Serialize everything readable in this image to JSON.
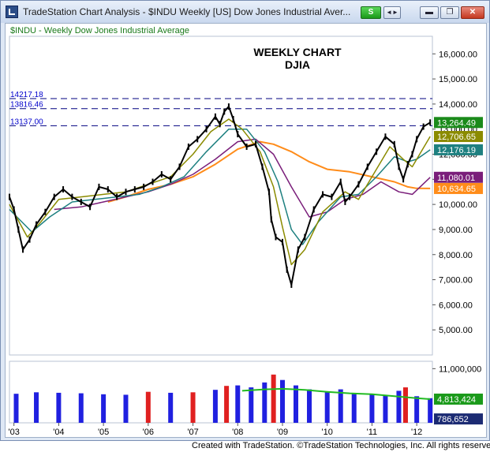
{
  "window": {
    "title": "TradeStation Chart Analysis - $INDU Weekly [US] Dow Jones Industrial Aver...",
    "buttons": {
      "s": "S",
      "arrows": "◄►",
      "minimize": "▬",
      "restore": "❐",
      "close": "✕"
    }
  },
  "footer": "Created with TradeStation. ©TradeStation Technologies, Inc. All rights reserved.",
  "colors": {
    "price": "#000000",
    "sma10": "#8b8b00",
    "sma20": "#1e8080",
    "sma50": "#7a1e7a",
    "sma100": "#ff8c1a",
    "vol_up": "#2020e0",
    "vol_down": "#e02020",
    "vol_avg": "#22bb22",
    "level_line": "#000080",
    "level_text": "#0000cc"
  },
  "chart_data": {
    "type": "line",
    "symbol_label": "$INDU - Weekly  Dow Jones Industrial Average",
    "annotation": [
      "WEEKLY CHART",
      "DJIA"
    ],
    "x_tick_labels": [
      "'03",
      "'04",
      "'05",
      "'06",
      "'07",
      "'08",
      "'09",
      "'10",
      "'11",
      "'12"
    ],
    "x_ticks": [
      2003,
      2004,
      2005,
      2006,
      2007,
      2008,
      2009,
      2010,
      2011,
      2012
    ],
    "x_range": [
      2002.9,
      2012.35
    ],
    "y_ticks": [
      5000,
      6000,
      7000,
      8000,
      9000,
      10000,
      11000,
      12000,
      13000,
      14000,
      15000,
      16000
    ],
    "y_tick_labels": [
      "5,000.00",
      "6,000.00",
      "7,000.00",
      "8,000.00",
      "9,000.00",
      "10,000.00",
      "11,000.00",
      "12,000.00",
      "13,000.00",
      "14,000.00",
      "15,000.00",
      "16,000.00"
    ],
    "ylim": [
      4000,
      16700
    ],
    "horizontal_levels": [
      {
        "label": "14217.18",
        "value": 14217.18
      },
      {
        "label": "13816.46",
        "value": 13816.46
      },
      {
        "label": "13137.00",
        "value": 13137.0
      }
    ],
    "series": [
      {
        "name": "Price",
        "color_key": "price",
        "x": [
          2002.9,
          2003.0,
          2003.1,
          2003.2,
          2003.35,
          2003.5,
          2003.7,
          2003.9,
          2004.1,
          2004.3,
          2004.5,
          2004.7,
          2004.9,
          2005.1,
          2005.3,
          2005.5,
          2005.7,
          2005.9,
          2006.1,
          2006.3,
          2006.5,
          2006.7,
          2006.9,
          2007.1,
          2007.3,
          2007.5,
          2007.6,
          2007.7,
          2007.8,
          2007.9,
          2008.0,
          2008.2,
          2008.4,
          2008.55,
          2008.7,
          2008.75,
          2008.85,
          2009.0,
          2009.1,
          2009.2,
          2009.35,
          2009.5,
          2009.7,
          2009.9,
          2010.1,
          2010.3,
          2010.4,
          2010.5,
          2010.7,
          2010.9,
          2011.1,
          2011.3,
          2011.5,
          2011.6,
          2011.7,
          2011.8,
          2011.9,
          2012.0,
          2012.15,
          2012.3
        ],
        "y": [
          10300,
          9800,
          9000,
          8200,
          8600,
          9200,
          9700,
          10300,
          10600,
          10300,
          10100,
          9900,
          10700,
          10600,
          10300,
          10500,
          10600,
          10700,
          10900,
          11200,
          11000,
          11500,
          12300,
          12600,
          13000,
          13500,
          13200,
          13700,
          13900,
          13400,
          12800,
          12300,
          12400,
          11500,
          10500,
          9400,
          8700,
          8500,
          7400,
          6800,
          8200,
          8700,
          9800,
          10400,
          10300,
          10900,
          10100,
          10300,
          10800,
          11500,
          12100,
          12700,
          12400,
          11500,
          11000,
          11600,
          12000,
          12600,
          13100,
          13264.49
        ]
      },
      {
        "name": "SMA 10",
        "color_key": "sma10",
        "price_label": "12,706.65",
        "x": [
          2002.9,
          2003.3,
          2003.6,
          2004.0,
          2004.5,
          2005.0,
          2005.5,
          2006.0,
          2006.5,
          2007.0,
          2007.4,
          2007.8,
          2008.1,
          2008.5,
          2008.8,
          2009.0,
          2009.2,
          2009.5,
          2009.9,
          2010.4,
          2010.7,
          2011.0,
          2011.4,
          2011.7,
          2011.9,
          2012.1,
          2012.3
        ],
        "y": [
          10000,
          8700,
          9300,
          10200,
          10300,
          10400,
          10500,
          10800,
          11100,
          12000,
          12900,
          13400,
          13000,
          12100,
          10700,
          9100,
          7600,
          8200,
          9700,
          10500,
          10200,
          11100,
          12300,
          11800,
          11500,
          12100,
          12706.65
        ]
      },
      {
        "name": "SMA 20",
        "color_key": "sma20",
        "price_label": "12,176.19",
        "x": [
          2002.9,
          2003.4,
          2003.8,
          2004.3,
          2004.8,
          2005.3,
          2005.8,
          2006.3,
          2006.8,
          2007.3,
          2007.8,
          2008.2,
          2008.6,
          2008.9,
          2009.2,
          2009.45,
          2009.8,
          2010.3,
          2010.7,
          2011.1,
          2011.5,
          2011.8,
          2012.0,
          2012.3
        ],
        "y": [
          9800,
          8900,
          9500,
          10100,
          10200,
          10300,
          10400,
          10700,
          11100,
          12100,
          13000,
          13000,
          12100,
          10900,
          9000,
          8400,
          9300,
          10300,
          10400,
          11100,
          11900,
          11700,
          11800,
          12176.19
        ]
      },
      {
        "name": "SMA 50",
        "color_key": "sma50",
        "price_label": "11,080.01",
        "x": [
          2003.9,
          2004.5,
          2005.0,
          2005.5,
          2006.0,
          2006.5,
          2007.0,
          2007.5,
          2008.0,
          2008.4,
          2008.8,
          2009.2,
          2009.6,
          2010.0,
          2010.4,
          2010.8,
          2011.2,
          2011.6,
          2011.9,
          2012.3
        ],
        "y": [
          9800,
          9900,
          10100,
          10300,
          10500,
          10800,
          11200,
          11800,
          12500,
          12600,
          12000,
          10700,
          9500,
          9700,
          10200,
          10400,
          10900,
          10500,
          10400,
          11080.01
        ]
      },
      {
        "name": "SMA 100",
        "color_key": "sma100",
        "price_label": "10,634.65",
        "x": [
          2005.1,
          2005.5,
          2006.0,
          2006.5,
          2007.0,
          2007.5,
          2008.0,
          2008.5,
          2008.8,
          2009.2,
          2009.6,
          2010.0,
          2010.5,
          2011.0,
          2011.5,
          2011.8,
          2012.0,
          2012.3
        ],
        "y": [
          10100,
          10300,
          10600,
          10800,
          11100,
          11600,
          12200,
          12500,
          12400,
          12100,
          11700,
          11400,
          11300,
          11100,
          10900,
          10700,
          10640,
          10634.65
        ]
      }
    ],
    "price_labels": [
      {
        "text": "13,264.49",
        "value": 13264.49,
        "bg": "#1a8a1a"
      },
      {
        "text": "12,706.65",
        "value": 12706.65,
        "bg": "#8b8b00"
      },
      {
        "text": "12,176.19",
        "value": 12176.19,
        "bg": "#1e8080"
      },
      {
        "text": "11,080.01",
        "value": 11080.01,
        "bg": "#7a1e7a"
      },
      {
        "text": "10,634.65",
        "value": 10634.65,
        "bg": "#ff8c1a"
      }
    ],
    "volume": {
      "y_ticks": [
        11000000
      ],
      "y_tick_labels": [
        "11,000,000"
      ],
      "ylim": [
        0,
        12500000
      ],
      "x": [
        2003.05,
        2003.5,
        2004.0,
        2004.5,
        2005.0,
        2005.5,
        2006.0,
        2006.5,
        2007.0,
        2007.5,
        2007.75,
        2008.0,
        2008.3,
        2008.6,
        2008.8,
        2009.0,
        2009.3,
        2009.6,
        2010.0,
        2010.3,
        2010.6,
        2011.0,
        2011.3,
        2011.6,
        2011.75,
        2012.0,
        2012.3
      ],
      "values": [
        5900000,
        6200000,
        6100000,
        6000000,
        5800000,
        5700000,
        6300000,
        6100000,
        6200000,
        6700000,
        7500000,
        7600000,
        7200000,
        8200000,
        9800000,
        8700000,
        7600000,
        6800000,
        6300000,
        6800000,
        6000000,
        5900000,
        5600000,
        6500000,
        7200000,
        5400000,
        5000000
      ],
      "avg_x": [
        2008.1,
        2008.6,
        2009.0,
        2009.5,
        2010.0,
        2010.5,
        2011.0,
        2011.5,
        2012.0,
        2012.3
      ],
      "avg_y": [
        6500000,
        6800000,
        6900000,
        6700000,
        6300000,
        6000000,
        5800000,
        5400000,
        5000000,
        4813424
      ],
      "labels": [
        {
          "text": "4,813,424",
          "value": 4813424,
          "bg": "#1a9a1a"
        },
        {
          "text": "786,652",
          "value": 786652,
          "bg": "#1c2b73"
        }
      ]
    }
  }
}
